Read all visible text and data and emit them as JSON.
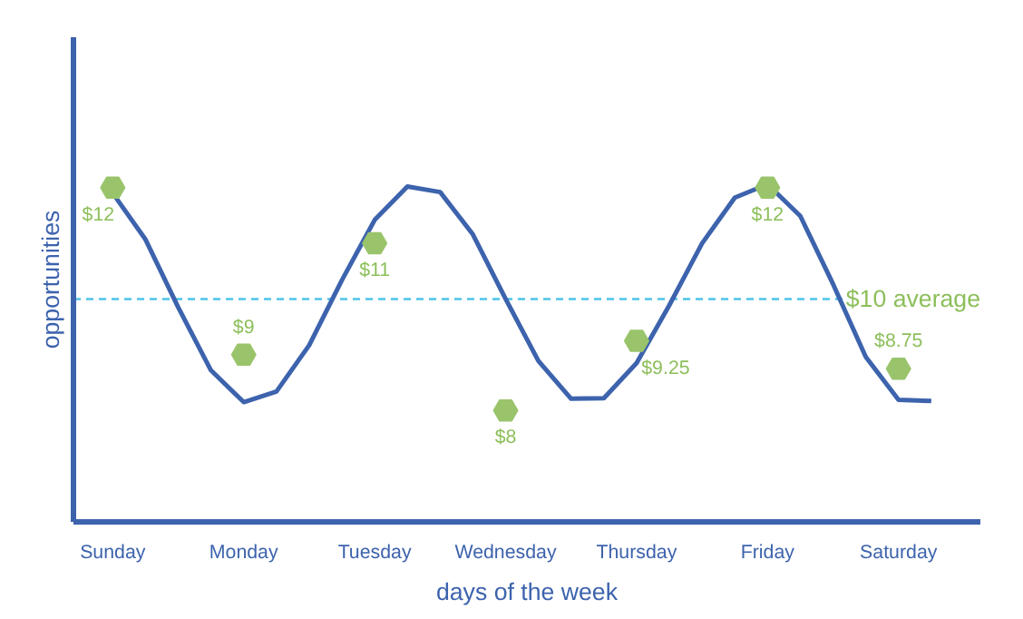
{
  "chart_data": {
    "type": "line",
    "xlabel": "days of the week",
    "ylabel": "opportunities",
    "categories": [
      "Sunday",
      null,
      null,
      null,
      "Monday",
      null,
      null,
      null,
      "Tuesday",
      null,
      null,
      null,
      "Wednesday",
      null,
      null,
      null,
      "Thursday",
      null,
      null,
      null,
      "Friday",
      null,
      null,
      null,
      "Saturday",
      null
    ],
    "ylim": [
      6,
      14.7
    ],
    "tick_labels": "x",
    "series": [
      {
        "color": "#3d63ad",
        "values": [
          11.9,
          11.07,
          9.85,
          8.72,
          8.15,
          8.34,
          9.17,
          10.34,
          11.42,
          12.02,
          11.92,
          11.16,
          10.0,
          8.89,
          8.21,
          8.22,
          8.85,
          9.89,
          11.0,
          11.82,
          12.06,
          11.49,
          10.27,
          8.96,
          8.19,
          8.17
        ]
      },
      {
        "type": "scatter",
        "color": "#9ac46b",
        "values": [
          12,
          null,
          null,
          null,
          9,
          null,
          null,
          null,
          11,
          null,
          null,
          null,
          8,
          null,
          null,
          null,
          9.25,
          null,
          null,
          null,
          12,
          null,
          null,
          null,
          8.75,
          null
        ],
        "value_labels": [
          "$12",
          null,
          null,
          null,
          "$9",
          null,
          null,
          null,
          "$11",
          null,
          null,
          null,
          "$8",
          null,
          null,
          null,
          "$9.25",
          null,
          null,
          null,
          "$12",
          null,
          null,
          null,
          "$8.75",
          null
        ]
      }
    ],
    "ref_lines": [
      {
        "axis": "y",
        "value": 10,
        "label": "$10 average",
        "color": "#4dc3ea",
        "line_style": "dashed"
      }
    ]
  }
}
